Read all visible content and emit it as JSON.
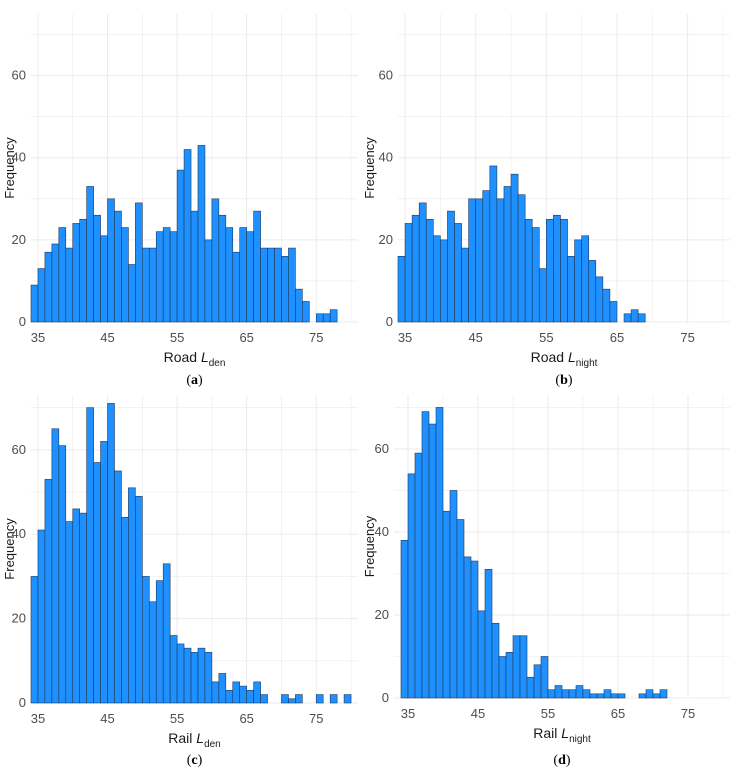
{
  "figure": {
    "bar_color": "#1E90FF",
    "bar_edge": "#1f3a5a",
    "grid_color": "#ebebeb"
  },
  "chart_data": [
    {
      "id": "a",
      "caption": "a",
      "type": "bar",
      "xlabel_main": "Road ",
      "xlabel_italic": "L",
      "xlabel_sub": "den",
      "ylabel": "Frequency",
      "x_start": 34,
      "bin_width": 1,
      "xlim": [
        34,
        81
      ],
      "ylim": [
        0,
        75
      ],
      "xticks": [
        35,
        45,
        55,
        65,
        75
      ],
      "yticks": [
        0,
        20,
        40,
        60
      ],
      "grid_step": 5,
      "values": [
        9,
        13,
        17,
        19,
        23,
        18,
        24,
        25,
        33,
        26,
        21,
        30,
        27,
        23,
        14,
        29,
        18,
        18,
        22,
        23,
        22,
        37,
        42,
        27,
        43,
        20,
        30,
        26,
        23,
        17,
        23,
        22,
        27,
        18,
        18,
        18,
        16,
        18,
        8,
        5,
        0,
        2,
        2,
        3
      ]
    },
    {
      "id": "b",
      "caption": "b",
      "type": "bar",
      "xlabel_main": "Road ",
      "xlabel_italic": "L",
      "xlabel_sub": "night",
      "ylabel": "Frequency",
      "x_start": 34,
      "bin_width": 1,
      "xlim": [
        34,
        81
      ],
      "ylim": [
        0,
        75
      ],
      "xticks": [
        35,
        45,
        55,
        65,
        75
      ],
      "yticks": [
        0,
        20,
        40,
        60
      ],
      "grid_step": 5,
      "values": [
        16,
        24,
        26,
        29,
        25,
        21,
        20,
        27,
        24,
        18,
        30,
        30,
        32,
        38,
        30,
        33,
        36,
        31,
        25,
        23,
        13,
        25,
        26,
        25,
        16,
        20,
        21,
        15,
        11,
        8,
        5,
        0,
        2,
        3,
        2
      ]
    },
    {
      "id": "c",
      "caption": "c",
      "type": "bar",
      "xlabel_main": "Rail ",
      "xlabel_italic": "L",
      "xlabel_sub": "den",
      "ylabel": "Frequency",
      "x_start": 34,
      "bin_width": 1,
      "xlim": [
        34,
        81
      ],
      "ylim": [
        0,
        73
      ],
      "xticks": [
        35,
        45,
        55,
        65,
        75
      ],
      "yticks": [
        0,
        20,
        40,
        60
      ],
      "grid_step": 5,
      "values": [
        30,
        41,
        53,
        65,
        61,
        43,
        46,
        45,
        70,
        57,
        62,
        71,
        55,
        44,
        51,
        49,
        30,
        24,
        29,
        33,
        16,
        14,
        13,
        12,
        13,
        12,
        5,
        7,
        3,
        5,
        4,
        3,
        5,
        2,
        0,
        0,
        2,
        1,
        2,
        0,
        0,
        2,
        0,
        2,
        0,
        2
      ]
    },
    {
      "id": "d",
      "caption": "d",
      "type": "bar",
      "xlabel_main": "Rail ",
      "xlabel_italic": "L",
      "xlabel_sub": "night",
      "ylabel": "Frequency",
      "x_start": 34,
      "bin_width": 1,
      "xlim": [
        33,
        81
      ],
      "ylim": [
        0,
        73
      ],
      "xticks": [
        35,
        45,
        55,
        65,
        75
      ],
      "yticks": [
        0,
        20,
        40,
        60
      ],
      "grid_step": 5,
      "values": [
        38,
        54,
        59,
        69,
        66,
        70,
        45,
        50,
        43,
        34,
        33,
        21,
        31,
        18,
        10,
        11,
        15,
        15,
        5,
        8,
        10,
        2,
        3,
        2,
        2,
        3,
        2,
        1,
        1,
        2,
        1,
        1,
        0,
        0,
        1,
        2,
        1,
        2
      ]
    }
  ]
}
